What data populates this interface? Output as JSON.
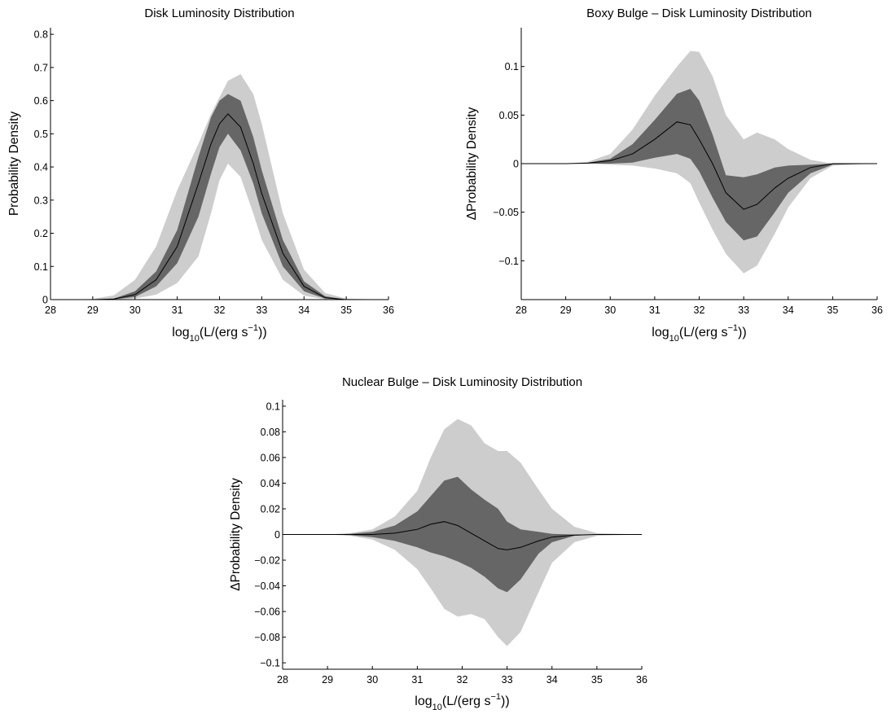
{
  "figure": {
    "background": "#ffffff",
    "colors": {
      "outer_band": "#cdcdcd",
      "inner_band": "#666666",
      "median_line": "#000000",
      "axis": "#000000"
    }
  },
  "chart_data": [
    {
      "id": "disk",
      "type": "area",
      "title": "Disk Luminosity Distribution",
      "xlabel": {
        "main": "log",
        "sub": "10",
        "mid": "(L/(erg s",
        "sup": "−1",
        "end": "))"
      },
      "ylabel": "Probability Density",
      "xlim": [
        28,
        36
      ],
      "ylim": [
        0,
        0.82
      ],
      "xticks": [
        28,
        29,
        30,
        31,
        32,
        33,
        34,
        35,
        36
      ],
      "xtick_labels": [
        "28",
        "29",
        "30",
        "31",
        "32",
        "33",
        "34",
        "35",
        "36"
      ],
      "yticks": [
        0,
        0.1,
        0.2,
        0.3,
        0.4,
        0.5,
        0.6,
        0.7,
        0.8
      ],
      "ytick_labels": [
        "0",
        "0.1",
        "0.2",
        "0.3",
        "0.4",
        "0.5",
        "0.6",
        "0.7",
        "0.8"
      ],
      "grid": false,
      "x": [
        28,
        29,
        29.5,
        30,
        30.5,
        31,
        31.5,
        31.8,
        32,
        32.2,
        32.5,
        32.8,
        33,
        33.5,
        34,
        34.5,
        35,
        36
      ],
      "median": [
        0,
        0,
        0.002,
        0.015,
        0.06,
        0.16,
        0.35,
        0.47,
        0.53,
        0.56,
        0.52,
        0.41,
        0.32,
        0.14,
        0.04,
        0.006,
        0,
        0
      ],
      "inner_low": [
        0,
        0,
        0.001,
        0.008,
        0.04,
        0.11,
        0.25,
        0.38,
        0.46,
        0.5,
        0.45,
        0.35,
        0.26,
        0.1,
        0.025,
        0.003,
        0,
        0
      ],
      "inner_high": [
        0,
        0,
        0.003,
        0.025,
        0.085,
        0.21,
        0.43,
        0.55,
        0.6,
        0.62,
        0.6,
        0.49,
        0.39,
        0.18,
        0.055,
        0.01,
        0,
        0
      ],
      "outer_low": [
        0,
        0,
        0,
        0.003,
        0.015,
        0.05,
        0.13,
        0.26,
        0.36,
        0.41,
        0.37,
        0.26,
        0.18,
        0.06,
        0.012,
        0.001,
        0,
        0
      ],
      "outer_high": [
        0,
        0.002,
        0.013,
        0.06,
        0.16,
        0.33,
        0.47,
        0.56,
        0.61,
        0.66,
        0.68,
        0.62,
        0.53,
        0.26,
        0.09,
        0.02,
        0.003,
        0
      ]
    },
    {
      "id": "boxy",
      "type": "area",
      "title": "Boxy Bulge – Disk Luminosity Distribution",
      "xlabel": {
        "main": "log",
        "sub": "10",
        "mid": "(L/(erg s",
        "sup": "−1",
        "end": "))"
      },
      "ylabel": "ΔProbability Density",
      "xlim": [
        28,
        36
      ],
      "ylim": [
        -0.14,
        0.14
      ],
      "xticks": [
        28,
        29,
        30,
        31,
        32,
        33,
        34,
        35,
        36
      ],
      "xtick_labels": [
        "28",
        "29",
        "30",
        "31",
        "32",
        "33",
        "34",
        "35",
        "36"
      ],
      "yticks": [
        -0.1,
        -0.05,
        0,
        0.05,
        0.1
      ],
      "ytick_labels": [
        "−0.1",
        "−0.05",
        "0",
        "0.05",
        "0.1"
      ],
      "grid": false,
      "x": [
        28,
        29,
        29.5,
        30,
        30.5,
        31,
        31.5,
        31.8,
        32,
        32.3,
        32.6,
        33,
        33.3,
        33.7,
        34,
        34.5,
        35,
        36
      ],
      "median": [
        0,
        0,
        0.0005,
        0.003,
        0.01,
        0.025,
        0.043,
        0.04,
        0.025,
        0,
        -0.03,
        -0.047,
        -0.042,
        -0.025,
        -0.015,
        -0.004,
        0,
        0
      ],
      "inner_low": [
        0,
        0,
        0,
        0,
        0.001,
        0.006,
        0.01,
        0.005,
        -0.008,
        -0.035,
        -0.06,
        -0.079,
        -0.075,
        -0.05,
        -0.03,
        -0.01,
        -0.001,
        0
      ],
      "inner_high": [
        0,
        0,
        0.001,
        0.005,
        0.02,
        0.045,
        0.072,
        0.077,
        0.065,
        0.03,
        -0.012,
        -0.014,
        -0.011,
        -0.004,
        -0.002,
        -0.001,
        0,
        0
      ],
      "outer_low": [
        0,
        0,
        0,
        -0.001,
        -0.002,
        -0.005,
        -0.01,
        -0.02,
        -0.04,
        -0.068,
        -0.093,
        -0.113,
        -0.105,
        -0.072,
        -0.045,
        -0.015,
        -0.002,
        0
      ],
      "outer_high": [
        0,
        0,
        0.002,
        0.01,
        0.035,
        0.07,
        0.1,
        0.116,
        0.115,
        0.09,
        0.05,
        0.025,
        0.032,
        0.025,
        0.015,
        0.004,
        0,
        0
      ]
    },
    {
      "id": "nuclear",
      "type": "area",
      "title": "Nuclear Bulge – Disk Luminosity Distribution",
      "xlabel": {
        "main": "log",
        "sub": "10",
        "mid": "(L/(erg s",
        "sup": "−1",
        "end": "))"
      },
      "ylabel": "ΔProbability Density",
      "xlim": [
        28,
        36
      ],
      "ylim": [
        -0.105,
        0.105
      ],
      "xticks": [
        28,
        29,
        30,
        31,
        32,
        33,
        34,
        35,
        36
      ],
      "xtick_labels": [
        "28",
        "29",
        "30",
        "31",
        "32",
        "33",
        "34",
        "35",
        "36"
      ],
      "yticks": [
        -0.1,
        -0.08,
        -0.06,
        -0.04,
        -0.02,
        0,
        0.02,
        0.04,
        0.06,
        0.08,
        0.1
      ],
      "ytick_labels": [
        "−0.1",
        "−0.08",
        "−0.06",
        "−0.04",
        "−0.02",
        "0",
        "0.02",
        "0.04",
        "0.06",
        "0.08",
        "0.1"
      ],
      "grid": false,
      "x": [
        28,
        29,
        29.5,
        30,
        30.5,
        31,
        31.3,
        31.6,
        31.9,
        32.2,
        32.5,
        32.8,
        33,
        33.3,
        33.7,
        34,
        34.5,
        35,
        36
      ],
      "median": [
        0,
        0,
        0,
        0,
        0.001,
        0.004,
        0.008,
        0.01,
        0.007,
        0.001,
        -0.005,
        -0.011,
        -0.012,
        -0.01,
        -0.005,
        -0.002,
        -0.0005,
        0,
        0
      ],
      "inner_low": [
        0,
        0,
        -0.0005,
        -0.002,
        -0.005,
        -0.01,
        -0.014,
        -0.017,
        -0.021,
        -0.026,
        -0.033,
        -0.042,
        -0.045,
        -0.035,
        -0.015,
        -0.006,
        -0.001,
        0,
        0
      ],
      "inner_high": [
        0,
        0,
        0.0005,
        0.002,
        0.007,
        0.018,
        0.03,
        0.042,
        0.045,
        0.035,
        0.027,
        0.02,
        0.01,
        0.004,
        0.002,
        0.0005,
        0,
        0,
        0
      ],
      "outer_low": [
        0,
        0,
        -0.001,
        -0.004,
        -0.012,
        -0.027,
        -0.042,
        -0.058,
        -0.064,
        -0.062,
        -0.066,
        -0.08,
        -0.087,
        -0.076,
        -0.045,
        -0.022,
        -0.006,
        -0.001,
        0
      ],
      "outer_high": [
        0,
        0,
        0.001,
        0.004,
        0.014,
        0.034,
        0.06,
        0.082,
        0.09,
        0.085,
        0.071,
        0.065,
        0.065,
        0.056,
        0.035,
        0.02,
        0.006,
        0.001,
        0
      ]
    }
  ]
}
